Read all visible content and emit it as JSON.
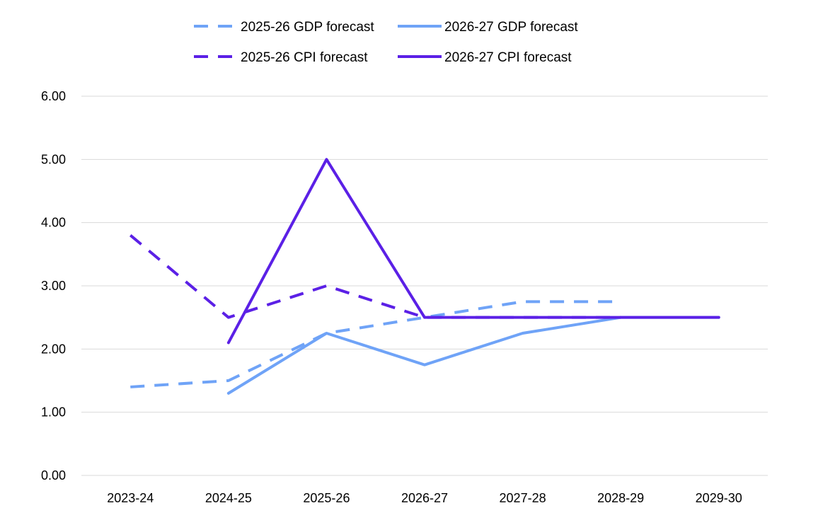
{
  "chart_data": {
    "type": "line",
    "title": "",
    "xlabel": "",
    "ylabel": "",
    "categories": [
      "2023-24",
      "2024-25",
      "2025-26",
      "2026-27",
      "2027-28",
      "2028-29",
      "2029-30"
    ],
    "ylim": [
      0,
      6
    ],
    "yticks": [
      "0.00",
      "1.00",
      "2.00",
      "3.00",
      "4.00",
      "5.00",
      "6.00"
    ],
    "grid": "horizontal",
    "legend_position": "top",
    "series": [
      {
        "name": "2025-26 GDP forecast",
        "color": "#6fa3f7",
        "dash": "dashed",
        "values": [
          1.4,
          1.5,
          2.25,
          2.5,
          2.75,
          2.75,
          null
        ]
      },
      {
        "name": "2026-27 GDP forecast",
        "color": "#6fa3f7",
        "dash": "solid",
        "values": [
          null,
          1.3,
          2.25,
          1.75,
          2.25,
          2.5,
          2.5
        ]
      },
      {
        "name": "2025-26 CPI forecast",
        "color": "#5b20e6",
        "dash": "dashed",
        "values": [
          3.8,
          2.5,
          3.0,
          2.5,
          2.5,
          2.5,
          null
        ]
      },
      {
        "name": "2026-27 CPI forecast",
        "color": "#5b20e6",
        "dash": "solid",
        "values": [
          null,
          2.1,
          5.0,
          2.5,
          2.5,
          2.5,
          2.5
        ]
      }
    ]
  }
}
